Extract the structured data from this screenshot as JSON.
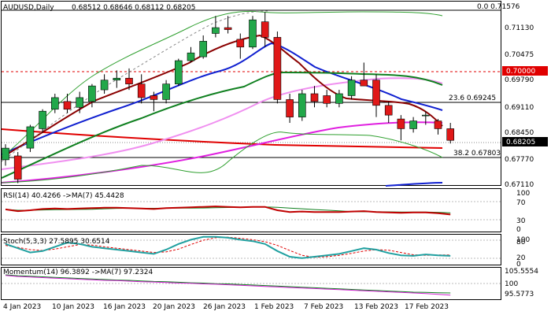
{
  "header": {
    "symbol": "AUDUSD,Daily",
    "ohlc": "0.68512 0.68646 0.68112 0.68205"
  },
  "price_panel": {
    "fib_top_label": "0.0 0.71576",
    "fib_236_label": "23.6 0.69245",
    "fib_382_label": "38.2 0.67803",
    "red_level_label": "0.70000",
    "current_price_label": "0.68205",
    "y_ticks": [
      "0.71130",
      "0.70475",
      "0.69790",
      "0.69110",
      "0.68450",
      "0.67770",
      "0.67110"
    ]
  },
  "rsi_panel": {
    "label": "RSI(14) 40.4266 ->MA(7) 45.4428",
    "y_ticks": [
      "100",
      "70",
      "30",
      "0"
    ]
  },
  "stoch_panel": {
    "label": "Stoch(5,3,3) 27.5895 30.6514",
    "y_ticks": [
      "100",
      "80",
      "20",
      "0"
    ]
  },
  "momentum_panel": {
    "label": "Momentum(14) 96.3892 ->MA(7) 97.2324",
    "y_ticks": [
      "105.5554",
      "100",
      "95.5773"
    ]
  },
  "x_axis": {
    "dates": [
      "4 Jan 2023",
      "10 Jan 2023",
      "16 Jan 2023",
      "20 Jan 2023",
      "26 Jan 2023",
      "1 Feb 2023",
      "7 Feb 2023",
      "13 Feb 2023",
      "17 Feb 2023"
    ]
  },
  "colors": {
    "bull": "#22a84a",
    "bear": "#e01818",
    "fib": "#000000",
    "level_red": "#e00000",
    "ema_blue": "#1020d0",
    "ema_magenta": "#e020e0",
    "ema_red": "#e00000",
    "ema_green": "#108020",
    "ema_darkred": "#8a0000",
    "bollinger": "#30a030",
    "pink": "#f090f0"
  },
  "chart_data": [
    {
      "type": "candlestick",
      "title": "AUDUSD,Daily",
      "ylim": [
        0.6705,
        0.7175
      ],
      "x": [
        "2023-01-03",
        "2023-01-04",
        "2023-01-05",
        "2023-01-06",
        "2023-01-09",
        "2023-01-10",
        "2023-01-11",
        "2023-01-12",
        "2023-01-13",
        "2023-01-16",
        "2023-01-17",
        "2023-01-18",
        "2023-01-19",
        "2023-01-20",
        "2023-01-23",
        "2023-01-24",
        "2023-01-25",
        "2023-01-26",
        "2023-01-27",
        "2023-01-30",
        "2023-01-31",
        "2023-02-01",
        "2023-02-02",
        "2023-02-03",
        "2023-02-06",
        "2023-02-07",
        "2023-02-08",
        "2023-02-09",
        "2023-02-10",
        "2023-02-13",
        "2023-02-14",
        "2023-02-15",
        "2023-02-16",
        "2023-02-17",
        "2023-02-20",
        "2023-02-21",
        "2023-02-22"
      ],
      "open": [
        0.677,
        0.678,
        0.68,
        0.685,
        0.69,
        0.692,
        0.6905,
        0.692,
        0.695,
        0.6975,
        0.698,
        0.6965,
        0.6935,
        0.6925,
        0.6965,
        0.7025,
        0.7035,
        0.7095,
        0.711,
        0.708,
        0.706,
        0.7125,
        0.7085,
        0.6925,
        0.688,
        0.694,
        0.6935,
        0.6915,
        0.6935,
        0.6975,
        0.6975,
        0.691,
        0.6875,
        0.685,
        0.6885,
        0.687,
        0.685
      ],
      "close": [
        0.68,
        0.672,
        0.6855,
        0.6895,
        0.693,
        0.69,
        0.693,
        0.696,
        0.6975,
        0.698,
        0.6965,
        0.693,
        0.6925,
        0.6965,
        0.7025,
        0.7045,
        0.7075,
        0.711,
        0.7105,
        0.706,
        0.713,
        0.7085,
        0.6925,
        0.688,
        0.694,
        0.692,
        0.6915,
        0.694,
        0.6975,
        0.696,
        0.691,
        0.6885,
        0.685,
        0.687,
        0.6885,
        0.685,
        0.682
      ],
      "high": [
        0.681,
        0.679,
        0.686,
        0.69,
        0.694,
        0.694,
        0.6945,
        0.6965,
        0.699,
        0.7,
        0.7005,
        0.699,
        0.6945,
        0.6975,
        0.703,
        0.706,
        0.709,
        0.714,
        0.714,
        0.7095,
        0.714,
        0.715,
        0.71,
        0.694,
        0.695,
        0.696,
        0.695,
        0.695,
        0.6985,
        0.702,
        0.699,
        0.692,
        0.6885,
        0.688,
        0.6895,
        0.6875,
        0.6865
      ],
      "low": [
        0.6755,
        0.671,
        0.679,
        0.684,
        0.689,
        0.689,
        0.689,
        0.6905,
        0.694,
        0.6955,
        0.695,
        0.6915,
        0.6895,
        0.6915,
        0.696,
        0.702,
        0.703,
        0.7085,
        0.7095,
        0.703,
        0.7055,
        0.706,
        0.6915,
        0.6865,
        0.687,
        0.6905,
        0.6905,
        0.6905,
        0.6925,
        0.696,
        0.688,
        0.6865,
        0.682,
        0.684,
        0.686,
        0.6835,
        0.6812
      ]
    },
    {
      "type": "line",
      "title": "RSI(14) 40.4266 ->MA(7) 45.4428",
      "ylim": [
        0,
        100
      ],
      "series": [
        {
          "values": [
            52,
            48,
            50,
            53,
            54,
            53,
            54,
            55,
            56,
            56,
            55,
            54,
            53,
            55,
            56,
            57,
            58,
            59,
            58,
            57,
            58,
            58,
            50,
            46,
            47,
            46,
            46,
            46,
            47,
            48,
            46,
            45,
            44,
            45,
            45,
            43,
            40
          ]
        }
      ]
    },
    {
      "type": "line",
      "title": "Stoch(5,3,3) 27.5895 30.6514",
      "ylim": [
        0,
        100
      ],
      "series": [
        {
          "values": [
            70,
            55,
            40,
            45,
            60,
            75,
            70,
            60,
            55,
            50,
            45,
            40,
            35,
            50,
            70,
            85,
            95,
            95,
            92,
            85,
            80,
            70,
            45,
            25,
            20,
            25,
            30,
            35,
            45,
            55,
            50,
            38,
            30,
            28,
            33,
            30,
            28
          ]
        },
        {
          "values": [
            65,
            58,
            50,
            47,
            52,
            60,
            68,
            66,
            60,
            55,
            50,
            45,
            40,
            42,
            52,
            68,
            83,
            92,
            94,
            90,
            85,
            78,
            65,
            47,
            30,
            23,
            25,
            30,
            37,
            45,
            50,
            48,
            40,
            32,
            30,
            31,
            31
          ]
        }
      ]
    },
    {
      "type": "line",
      "title": "Momentum(14) 96.3892 ->MA(7) 97.2324",
      "ylim": [
        95.2,
        106.1
      ],
      "series": [
        {
          "values": [
            103.6,
            103.2,
            103.0,
            102.8,
            102.6,
            102.4,
            102.2,
            102.0,
            101.8,
            101.7,
            101.5,
            101.3,
            101.2,
            101.0,
            100.8,
            100.7,
            100.5,
            100.4,
            100.2,
            100.0,
            99.8,
            99.6,
            99.4,
            99.2,
            99.0,
            98.8,
            98.6,
            98.4,
            98.2,
            98.0,
            97.8,
            97.6,
            97.4,
            97.2,
            97.0,
            96.7,
            96.4
          ]
        },
        {
          "values": [
            103.8,
            103.5,
            103.3,
            103.1,
            102.9,
            102.7,
            102.5,
            102.3,
            102.1,
            101.9,
            101.8,
            101.6,
            101.4,
            101.3,
            101.1,
            100.9,
            100.8,
            100.6,
            100.5,
            100.3,
            100.1,
            99.9,
            99.7,
            99.5,
            99.3,
            99.1,
            98.9,
            98.7,
            98.5,
            98.3,
            98.1,
            97.9,
            97.7,
            97.5,
            97.4,
            97.3,
            97.2
          ]
        }
      ]
    }
  ]
}
